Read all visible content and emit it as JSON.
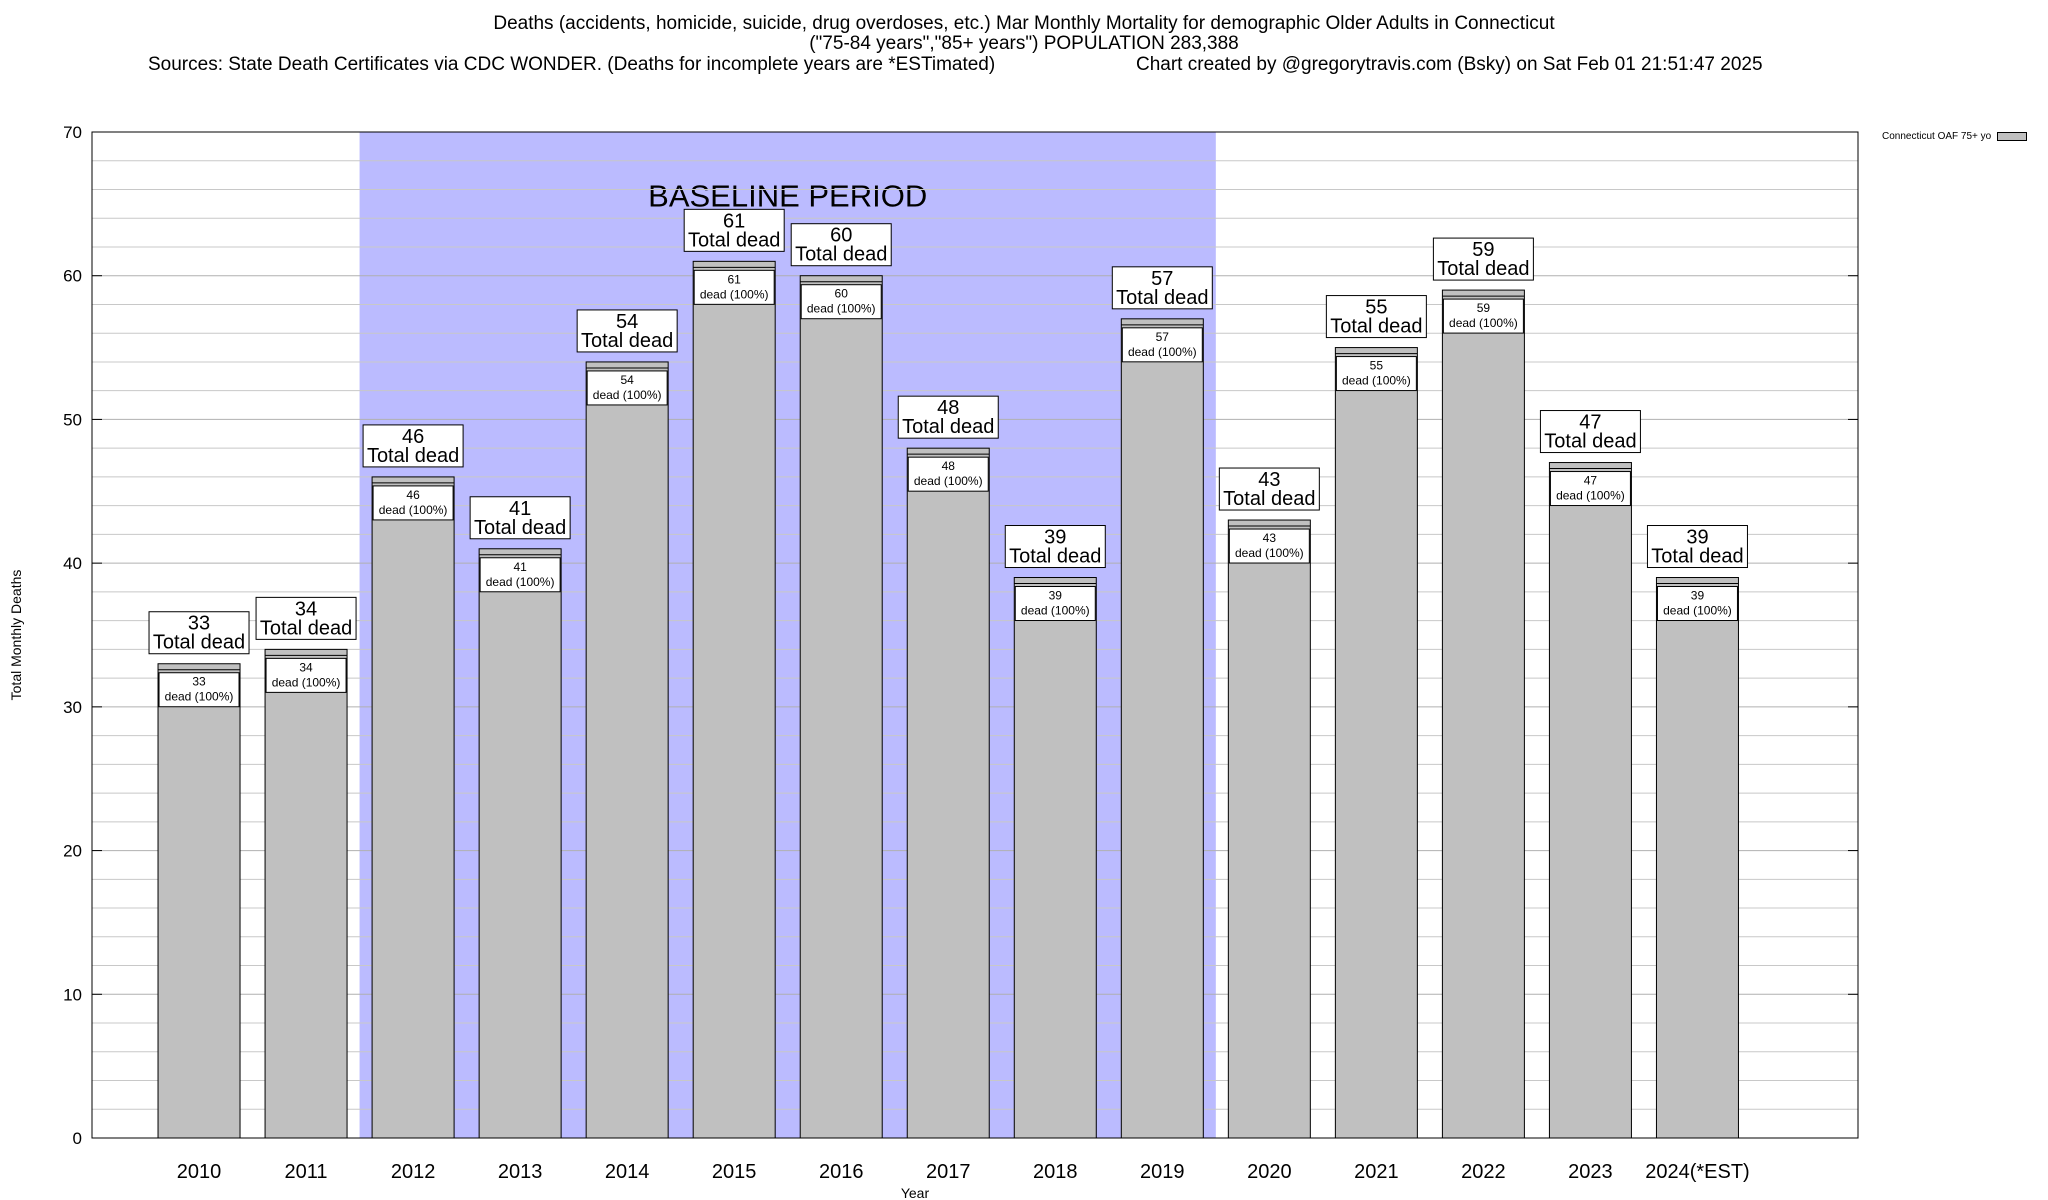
{
  "chart_data": {
    "type": "bar",
    "title": "Deaths (accidents, homicide, suicide, drug overdoses, etc.) Mar Monthly Mortality for demographic Older Adults in Connecticut",
    "subtitle": "(\"75-84 years\",\"85+ years\") POPULATION 283,388",
    "sources": "Sources: State Death Certificates via CDC WONDER. (Deaths for incomplete years are *ESTimated)",
    "credit": "Chart created by @gregorytravis.com (Bsky) on Sat Feb 01 21:51:47 2025",
    "xlabel": "Year",
    "ylabel": "Total Monthly Deaths",
    "ylim": [
      0,
      70
    ],
    "yticks": [
      0,
      10,
      20,
      30,
      40,
      50,
      60,
      70
    ],
    "categories": [
      "2010",
      "2011",
      "2012",
      "2013",
      "2014",
      "2015",
      "2016",
      "2017",
      "2018",
      "2019",
      "2020",
      "2021",
      "2022",
      "2023",
      "2024(*EST)"
    ],
    "series": [
      {
        "name": "Connecticut OAF 75+ yo",
        "values": [
          33,
          34,
          46,
          41,
          54,
          61,
          60,
          48,
          39,
          57,
          43,
          55,
          59,
          47,
          39
        ]
      }
    ],
    "total_label_text": "Total dead",
    "inner_label_suffix": "dead (100%)",
    "baseline": {
      "label": "BASELINE PERIOD",
      "from": "2012",
      "to": "2019"
    },
    "legend_position": "top-right",
    "grid": true,
    "colors": {
      "bar": "#c0c0c0",
      "baseline": "#bbbbff",
      "grid": "#c8c8c8"
    }
  }
}
